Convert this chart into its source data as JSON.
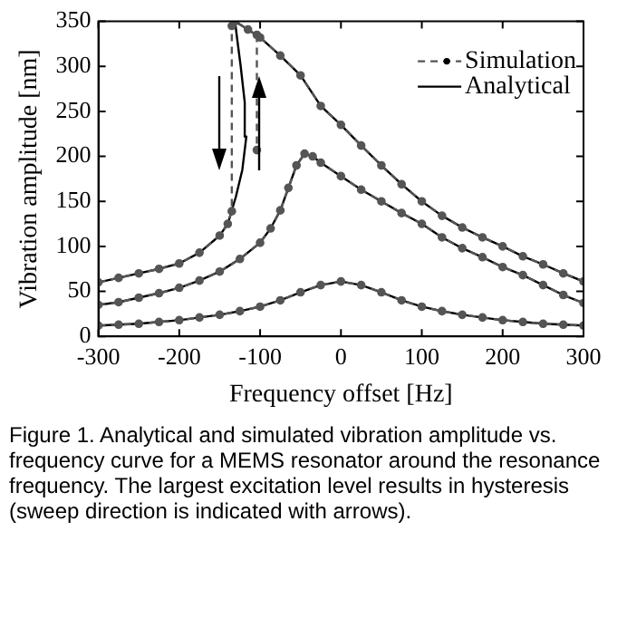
{
  "chart_data": {
    "type": "line",
    "xlabel": "Frequency offset [Hz]",
    "ylabel": "Vibration amplitude [nm]",
    "xlim": [
      -300,
      300
    ],
    "xticks": [
      -300,
      -200,
      -100,
      0,
      100,
      200,
      300
    ],
    "ylim": [
      0,
      350
    ],
    "yticks": [
      0,
      50,
      100,
      150,
      200,
      250,
      300,
      350
    ],
    "grid": false,
    "legend": "top right",
    "annotations": [
      "Figure 1. Analytical and simulated vibration amplitude vs. frequency curve for a MEMS resonator around the resonance frequency. The largest excitation level results in hysteresis (sweep direction is indicated with arrows)."
    ],
    "series": [
      {
        "name": "Simulation",
        "color": "#555555",
        "line_style": "dashed",
        "marker": "circle",
        "x": [
          -300,
          -275,
          -250,
          -225,
          -200,
          -175,
          -150,
          -125,
          -100,
          -75,
          -50,
          -25,
          0,
          25,
          50,
          75,
          100,
          125,
          150,
          175,
          200,
          225,
          250,
          275,
          300,
          0,
          -300,
          -275,
          -250,
          -225,
          -200,
          -175,
          -150,
          -125,
          -100,
          -87,
          -75,
          -65,
          -55,
          -45,
          -35,
          -25,
          0,
          25,
          50,
          75,
          100,
          125,
          150,
          175,
          200,
          225,
          250,
          275,
          300,
          0,
          -300,
          -275,
          -250,
          -225,
          -200,
          -175,
          -150,
          -140,
          -135,
          -135,
          -131,
          -115,
          -100,
          -75,
          -50,
          -25,
          0,
          25,
          50,
          75,
          100,
          125,
          150,
          175,
          200,
          225,
          250,
          275,
          300,
          0,
          -104,
          -104
        ],
        "values": [
          12,
          13,
          14,
          16,
          18,
          21,
          24,
          28,
          33,
          40,
          49,
          57,
          61,
          57,
          49,
          40,
          33,
          28,
          24,
          21,
          18,
          16,
          14,
          13,
          12,
          null,
          35,
          38,
          43,
          48,
          54,
          62,
          72,
          86,
          104,
          120,
          140,
          165,
          190,
          203,
          200,
          193,
          178,
          163,
          150,
          137,
          125,
          110,
          98,
          88,
          77,
          68,
          57,
          46,
          37,
          null,
          60,
          65,
          70,
          75,
          81,
          93,
          112,
          125,
          139,
          345,
          350,
          341,
          332,
          312,
          290,
          256,
          235,
          212,
          190,
          169,
          150,
          134,
          121,
          110,
          100,
          89,
          80,
          70,
          61,
          null,
          335,
          207
        ]
      },
      {
        "name": "Analytical",
        "color": "#000000",
        "line_style": "solid",
        "marker": "none",
        "x": [
          -300,
          -275,
          -250,
          -225,
          -200,
          -175,
          -150,
          -125,
          -100,
          -75,
          -50,
          -25,
          0,
          25,
          50,
          75,
          100,
          125,
          150,
          175,
          200,
          225,
          250,
          275,
          300,
          0,
          -300,
          -275,
          -250,
          -225,
          -200,
          -175,
          -150,
          -125,
          -100,
          -87,
          -75,
          -65,
          -55,
          -45,
          -35,
          -25,
          0,
          25,
          50,
          75,
          100,
          125,
          150,
          175,
          200,
          225,
          250,
          275,
          300,
          0,
          -300,
          -275,
          -250,
          -225,
          -200,
          -175,
          -150,
          -140,
          -130,
          -122,
          -117,
          -119,
          -124,
          -129,
          -131,
          -115,
          -100,
          -75,
          -50,
          -25,
          0,
          25,
          50,
          75,
          100,
          125,
          150,
          175,
          200,
          225,
          250,
          275,
          300
        ],
        "values": [
          12,
          13,
          14,
          16,
          18,
          21,
          24,
          28,
          33,
          40,
          49,
          57,
          61,
          57,
          49,
          40,
          33,
          28,
          24,
          21,
          18,
          16,
          14,
          13,
          12,
          null,
          35,
          38,
          43,
          48,
          54,
          62,
          72,
          86,
          104,
          120,
          140,
          165,
          190,
          203,
          200,
          193,
          178,
          163,
          150,
          137,
          125,
          110,
          98,
          88,
          77,
          68,
          57,
          46,
          37,
          null,
          60,
          65,
          70,
          75,
          81,
          93,
          112,
          125,
          155,
          185,
          222,
          260,
          300,
          335,
          350,
          341,
          332,
          312,
          290,
          256,
          235,
          212,
          190,
          169,
          150,
          134,
          121,
          110,
          100,
          89,
          80,
          70,
          61
        ]
      }
    ]
  }
}
